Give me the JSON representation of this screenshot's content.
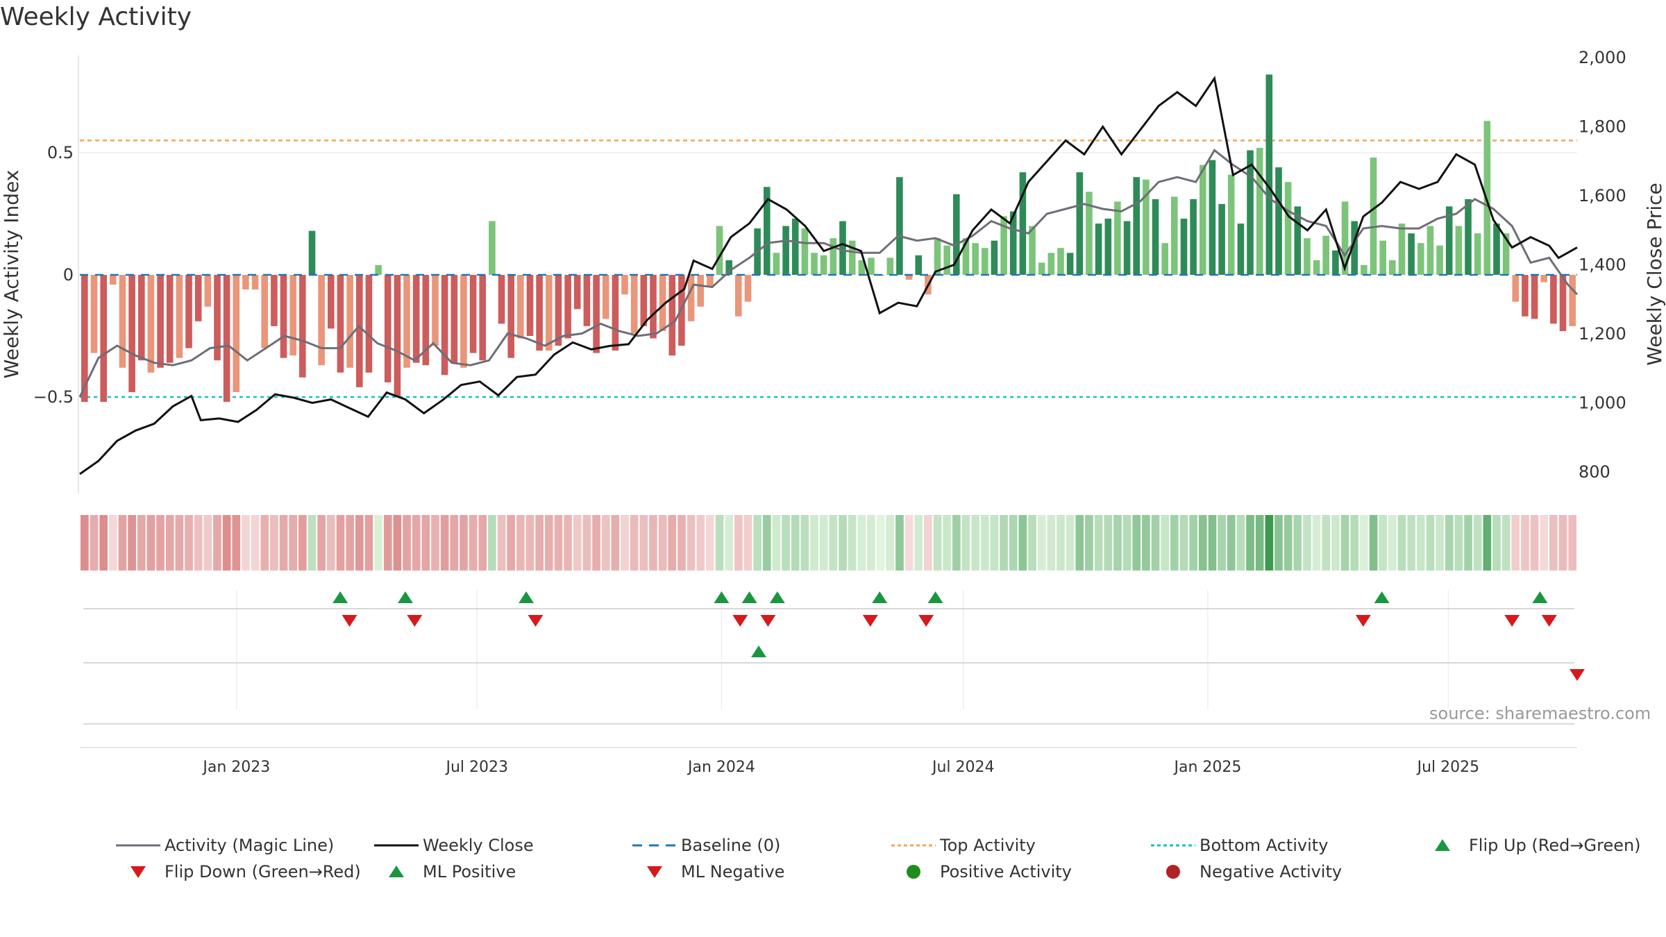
{
  "title": "Weekly Activity",
  "source": "source: sharemaestro.com",
  "colors": {
    "strong_green": "#2e8b57",
    "light_green": "#7cc47a",
    "strong_red": "#cd5c5c",
    "light_red": "#e9967a",
    "magic_line": "#6e6e78",
    "weekly_close": "#111111",
    "baseline": "#1f77b4",
    "top_activity": "#f4a460",
    "bottom_activity": "#17becf",
    "flip_up": "#1a9641",
    "flip_down": "#d7191c",
    "positive_activity": "#1e8c1e",
    "negative_activity": "#b22222"
  },
  "chart_data": {
    "type": "bar",
    "title": "Weekly Activity",
    "ylabel": "Weekly Activity Index",
    "y2label": "Weekly Close Price",
    "ylim": [
      -0.9,
      0.9
    ],
    "y2lim": [
      700,
      2000
    ],
    "y_ticks": [
      "0.5",
      "0",
      "−0.5"
    ],
    "y2_ticks": [
      "2,000",
      "1,800",
      "1,600",
      "1,400",
      "1,200",
      "1,000",
      "800"
    ],
    "x_ticks": [
      "Jan 2023",
      "Jul 2023",
      "Jan 2024",
      "Jul 2024",
      "Jan 2025",
      "Jul 2025"
    ],
    "x_start": "2022-09-05",
    "x_end": "2025-10-06",
    "top_activity": 0.55,
    "bottom_activity": -0.5,
    "baseline": 0,
    "grid": false,
    "activity_index": [
      -0.52,
      -0.32,
      -0.52,
      -0.04,
      -0.38,
      -0.48,
      -0.35,
      -0.4,
      -0.38,
      -0.36,
      -0.34,
      -0.3,
      -0.19,
      -0.13,
      -0.35,
      -0.52,
      -0.48,
      -0.06,
      -0.06,
      -0.3,
      -0.21,
      -0.34,
      -0.33,
      -0.42,
      0.18,
      -0.37,
      -0.22,
      -0.4,
      -0.38,
      -0.46,
      -0.4,
      0.04,
      -0.44,
      -0.5,
      -0.38,
      -0.36,
      -0.37,
      -0.29,
      -0.41,
      -0.36,
      -0.38,
      -0.32,
      -0.35,
      0.22,
      -0.2,
      -0.34,
      -0.26,
      -0.25,
      -0.31,
      -0.31,
      -0.29,
      -0.26,
      -0.14,
      -0.21,
      -0.32,
      -0.18,
      -0.31,
      -0.08,
      -0.24,
      -0.21,
      -0.26,
      -0.23,
      -0.33,
      -0.29,
      -0.19,
      -0.13,
      -0.05,
      0.2,
      0.06,
      -0.17,
      -0.11,
      0.19,
      0.36,
      0.09,
      0.2,
      0.23,
      0.19,
      0.09,
      0.08,
      0.15,
      0.22,
      0.14,
      0.06,
      0.07,
      0.0,
      0.07,
      0.4,
      -0.02,
      0.08,
      -0.08,
      0.15,
      0.12,
      0.33,
      0.15,
      0.13,
      0.11,
      0.14,
      0.24,
      0.26,
      0.42,
      0.2,
      0.05,
      0.09,
      0.11,
      0.09,
      0.42,
      0.34,
      0.21,
      0.23,
      0.3,
      0.22,
      0.4,
      0.39,
      0.31,
      0.13,
      0.32,
      0.23,
      0.31,
      0.45,
      0.47,
      0.29,
      0.41,
      0.21,
      0.51,
      0.52,
      0.82,
      0.44,
      0.38,
      0.28,
      0.15,
      0.06,
      0.16,
      0.1,
      0.3,
      0.22,
      0.04,
      0.48,
      0.14,
      0.06,
      0.21,
      0.17,
      0.13,
      0.2,
      0.12,
      0.28,
      0.2,
      0.31,
      0.17,
      0.63,
      0.21,
      0.17,
      -0.11,
      -0.17,
      -0.18,
      -0.03,
      -0.2,
      -0.23,
      -0.21
    ],
    "weekly_close": [
      {
        "x": "2022-09-05",
        "y": 794
      },
      {
        "x": "2022-09-19",
        "y": 832
      },
      {
        "x": "2022-10-03",
        "y": 890
      },
      {
        "x": "2022-10-17",
        "y": 920
      },
      {
        "x": "2022-10-31",
        "y": 940
      },
      {
        "x": "2022-11-14",
        "y": 990
      },
      {
        "x": "2022-11-28",
        "y": 1020
      },
      {
        "x": "2022-12-05",
        "y": 950
      },
      {
        "x": "2022-12-19",
        "y": 955
      },
      {
        "x": "2023-01-02",
        "y": 945
      },
      {
        "x": "2023-01-16",
        "y": 980
      },
      {
        "x": "2023-01-30",
        "y": 1025
      },
      {
        "x": "2023-02-13",
        "y": 1015
      },
      {
        "x": "2023-02-27",
        "y": 1000
      },
      {
        "x": "2023-03-13",
        "y": 1010
      },
      {
        "x": "2023-03-27",
        "y": 985
      },
      {
        "x": "2023-04-10",
        "y": 960
      },
      {
        "x": "2023-04-24",
        "y": 1030
      },
      {
        "x": "2023-05-08",
        "y": 1010
      },
      {
        "x": "2023-05-22",
        "y": 970
      },
      {
        "x": "2023-06-05",
        "y": 1008
      },
      {
        "x": "2023-06-19",
        "y": 1052
      },
      {
        "x": "2023-07-03",
        "y": 1062
      },
      {
        "x": "2023-07-17",
        "y": 1022
      },
      {
        "x": "2023-07-31",
        "y": 1075
      },
      {
        "x": "2023-08-14",
        "y": 1082
      },
      {
        "x": "2023-08-28",
        "y": 1140
      },
      {
        "x": "2023-09-11",
        "y": 1175
      },
      {
        "x": "2023-09-25",
        "y": 1155
      },
      {
        "x": "2023-10-09",
        "y": 1165
      },
      {
        "x": "2023-10-23",
        "y": 1170
      },
      {
        "x": "2023-11-06",
        "y": 1240
      },
      {
        "x": "2023-11-20",
        "y": 1290
      },
      {
        "x": "2023-12-04",
        "y": 1330
      },
      {
        "x": "2023-12-11",
        "y": 1412
      },
      {
        "x": "2023-12-25",
        "y": 1388
      },
      {
        "x": "2024-01-08",
        "y": 1480
      },
      {
        "x": "2024-01-22",
        "y": 1520
      },
      {
        "x": "2024-02-05",
        "y": 1590
      },
      {
        "x": "2024-02-19",
        "y": 1560
      },
      {
        "x": "2024-03-04",
        "y": 1512
      },
      {
        "x": "2024-03-18",
        "y": 1440
      },
      {
        "x": "2024-04-01",
        "y": 1460
      },
      {
        "x": "2024-04-15",
        "y": 1440
      },
      {
        "x": "2024-04-29",
        "y": 1260
      },
      {
        "x": "2024-05-13",
        "y": 1290
      },
      {
        "x": "2024-05-27",
        "y": 1280
      },
      {
        "x": "2024-06-10",
        "y": 1380
      },
      {
        "x": "2024-06-24",
        "y": 1400
      },
      {
        "x": "2024-07-08",
        "y": 1500
      },
      {
        "x": "2024-07-22",
        "y": 1560
      },
      {
        "x": "2024-08-05",
        "y": 1520
      },
      {
        "x": "2024-08-19",
        "y": 1640
      },
      {
        "x": "2024-09-02",
        "y": 1700
      },
      {
        "x": "2024-09-16",
        "y": 1760
      },
      {
        "x": "2024-09-30",
        "y": 1720
      },
      {
        "x": "2024-10-14",
        "y": 1800
      },
      {
        "x": "2024-10-28",
        "y": 1720
      },
      {
        "x": "2024-11-11",
        "y": 1790
      },
      {
        "x": "2024-11-25",
        "y": 1860
      },
      {
        "x": "2024-12-09",
        "y": 1900
      },
      {
        "x": "2024-12-23",
        "y": 1860
      },
      {
        "x": "2025-01-06",
        "y": 1940
      },
      {
        "x": "2025-01-20",
        "y": 1660
      },
      {
        "x": "2025-02-03",
        "y": 1690
      },
      {
        "x": "2025-02-17",
        "y": 1620
      },
      {
        "x": "2025-03-03",
        "y": 1540
      },
      {
        "x": "2025-03-17",
        "y": 1500
      },
      {
        "x": "2025-03-31",
        "y": 1560
      },
      {
        "x": "2025-04-14",
        "y": 1390
      },
      {
        "x": "2025-04-28",
        "y": 1540
      },
      {
        "x": "2025-05-12",
        "y": 1580
      },
      {
        "x": "2025-05-26",
        "y": 1640
      },
      {
        "x": "2025-06-09",
        "y": 1620
      },
      {
        "x": "2025-06-23",
        "y": 1640
      },
      {
        "x": "2025-07-07",
        "y": 1720
      },
      {
        "x": "2025-07-21",
        "y": 1690
      },
      {
        "x": "2025-08-04",
        "y": 1530
      },
      {
        "x": "2025-08-18",
        "y": 1450
      },
      {
        "x": "2025-09-01",
        "y": 1480
      },
      {
        "x": "2025-09-15",
        "y": 1455
      },
      {
        "x": "2025-09-22",
        "y": 1420
      },
      {
        "x": "2025-10-06",
        "y": 1450
      }
    ],
    "magic_line": [
      {
        "x": "2022-09-05",
        "y": -0.5
      },
      {
        "x": "2022-09-19",
        "y": -0.34
      },
      {
        "x": "2022-10-03",
        "y": -0.29
      },
      {
        "x": "2022-10-17",
        "y": -0.33
      },
      {
        "x": "2022-10-31",
        "y": -0.36
      },
      {
        "x": "2022-11-14",
        "y": -0.37
      },
      {
        "x": "2022-11-28",
        "y": -0.35
      },
      {
        "x": "2022-12-12",
        "y": -0.3
      },
      {
        "x": "2022-12-26",
        "y": -0.29
      },
      {
        "x": "2023-01-09",
        "y": -0.35
      },
      {
        "x": "2023-01-23",
        "y": -0.3
      },
      {
        "x": "2023-02-06",
        "y": -0.25
      },
      {
        "x": "2023-02-20",
        "y": -0.27
      },
      {
        "x": "2023-03-06",
        "y": -0.3
      },
      {
        "x": "2023-03-20",
        "y": -0.3
      },
      {
        "x": "2023-04-03",
        "y": -0.21
      },
      {
        "x": "2023-04-17",
        "y": -0.28
      },
      {
        "x": "2023-05-01",
        "y": -0.31
      },
      {
        "x": "2023-05-15",
        "y": -0.35
      },
      {
        "x": "2023-05-29",
        "y": -0.28
      },
      {
        "x": "2023-06-12",
        "y": -0.36
      },
      {
        "x": "2023-06-26",
        "y": -0.37
      },
      {
        "x": "2023-07-10",
        "y": -0.35
      },
      {
        "x": "2023-07-24",
        "y": -0.24
      },
      {
        "x": "2023-08-07",
        "y": -0.26
      },
      {
        "x": "2023-08-21",
        "y": -0.29
      },
      {
        "x": "2023-09-04",
        "y": -0.25
      },
      {
        "x": "2023-09-18",
        "y": -0.24
      },
      {
        "x": "2023-10-02",
        "y": -0.2
      },
      {
        "x": "2023-10-16",
        "y": -0.23
      },
      {
        "x": "2023-10-30",
        "y": -0.25
      },
      {
        "x": "2023-11-13",
        "y": -0.24
      },
      {
        "x": "2023-11-27",
        "y": -0.19
      },
      {
        "x": "2023-12-11",
        "y": -0.04
      },
      {
        "x": "2023-12-25",
        "y": -0.05
      },
      {
        "x": "2024-01-08",
        "y": 0.02
      },
      {
        "x": "2024-01-22",
        "y": 0.07
      },
      {
        "x": "2024-02-05",
        "y": 0.13
      },
      {
        "x": "2024-02-19",
        "y": 0.14
      },
      {
        "x": "2024-03-04",
        "y": 0.13
      },
      {
        "x": "2024-03-18",
        "y": 0.13
      },
      {
        "x": "2024-04-01",
        "y": 0.1
      },
      {
        "x": "2024-04-15",
        "y": 0.09
      },
      {
        "x": "2024-04-29",
        "y": 0.09
      },
      {
        "x": "2024-05-13",
        "y": 0.16
      },
      {
        "x": "2024-05-27",
        "y": 0.14
      },
      {
        "x": "2024-06-10",
        "y": 0.15
      },
      {
        "x": "2024-06-24",
        "y": 0.12
      },
      {
        "x": "2024-07-08",
        "y": 0.16
      },
      {
        "x": "2024-07-22",
        "y": 0.22
      },
      {
        "x": "2024-08-05",
        "y": 0.19
      },
      {
        "x": "2024-08-19",
        "y": 0.17
      },
      {
        "x": "2024-09-02",
        "y": 0.25
      },
      {
        "x": "2024-09-16",
        "y": 0.27
      },
      {
        "x": "2024-09-30",
        "y": 0.29
      },
      {
        "x": "2024-10-14",
        "y": 0.27
      },
      {
        "x": "2024-10-28",
        "y": 0.26
      },
      {
        "x": "2024-11-11",
        "y": 0.3
      },
      {
        "x": "2024-11-25",
        "y": 0.38
      },
      {
        "x": "2024-12-09",
        "y": 0.4
      },
      {
        "x": "2024-12-23",
        "y": 0.38
      },
      {
        "x": "2025-01-06",
        "y": 0.51
      },
      {
        "x": "2025-01-20",
        "y": 0.45
      },
      {
        "x": "2025-02-03",
        "y": 0.4
      },
      {
        "x": "2025-02-17",
        "y": 0.31
      },
      {
        "x": "2025-03-03",
        "y": 0.26
      },
      {
        "x": "2025-03-17",
        "y": 0.22
      },
      {
        "x": "2025-03-31",
        "y": 0.2
      },
      {
        "x": "2025-04-14",
        "y": 0.08
      },
      {
        "x": "2025-04-28",
        "y": 0.19
      },
      {
        "x": "2025-05-12",
        "y": 0.2
      },
      {
        "x": "2025-05-26",
        "y": 0.19
      },
      {
        "x": "2025-06-09",
        "y": 0.19
      },
      {
        "x": "2025-06-23",
        "y": 0.23
      },
      {
        "x": "2025-07-07",
        "y": 0.25
      },
      {
        "x": "2025-07-21",
        "y": 0.31
      },
      {
        "x": "2025-08-04",
        "y": 0.27
      },
      {
        "x": "2025-08-18",
        "y": 0.2
      },
      {
        "x": "2025-09-01",
        "y": 0.05
      },
      {
        "x": "2025-09-15",
        "y": 0.07
      },
      {
        "x": "2025-09-29",
        "y": -0.04
      },
      {
        "x": "2025-10-06",
        "y": -0.08
      }
    ],
    "flip_up_row1": [
      "2023-03-20",
      "2023-05-08",
      "2023-08-07",
      "2024-01-01",
      "2024-01-22",
      "2024-02-12",
      "2024-04-29",
      "2024-06-10",
      "2025-05-12",
      "2025-09-08"
    ],
    "flip_down_row1": [
      "2023-03-27",
      "2023-05-15",
      "2023-08-14",
      "2024-01-15",
      "2024-02-05",
      "2024-04-22",
      "2024-06-03",
      "2025-04-28",
      "2025-08-18",
      "2025-09-15"
    ],
    "ml_positive_row2": [
      "2024-01-29"
    ],
    "ml_negative_row2": [
      "2025-10-06"
    ],
    "legend": [
      {
        "label": "Activity (Magic Line)",
        "symbol": "line-gray"
      },
      {
        "label": "Weekly Close",
        "symbol": "line-black"
      },
      {
        "label": "Baseline (0)",
        "symbol": "dash-blue"
      },
      {
        "label": "Top Activity",
        "symbol": "dot-orange"
      },
      {
        "label": "Bottom Activity",
        "symbol": "dot-cyan"
      },
      {
        "label": "Flip Up (Red→Green)",
        "symbol": "triangle-up-green"
      },
      {
        "label": "Flip Down (Green→Red)",
        "symbol": "triangle-down-red"
      },
      {
        "label": "ML Positive",
        "symbol": "triangle-up-green"
      },
      {
        "label": "ML Negative",
        "symbol": "triangle-down-red"
      },
      {
        "label": "Positive Activity",
        "symbol": "circle-green"
      },
      {
        "label": "Negative Activity",
        "symbol": "circle-red"
      }
    ]
  }
}
